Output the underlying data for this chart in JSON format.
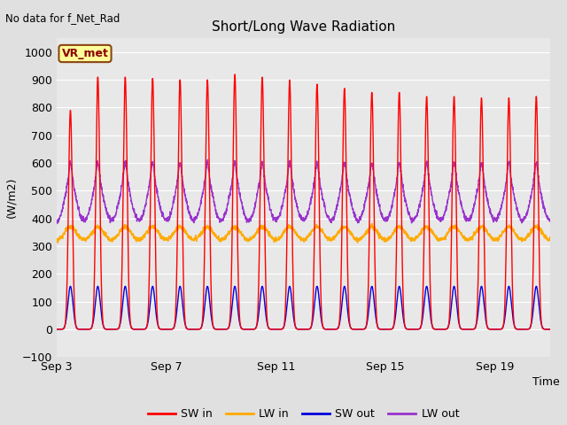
{
  "title": "Short/Long Wave Radiation",
  "xlabel": "Time",
  "ylabel": "(W/m2)",
  "ylim": [
    -100,
    1050
  ],
  "yticks": [
    -100,
    0,
    100,
    200,
    300,
    400,
    500,
    600,
    700,
    800,
    900,
    1000
  ],
  "no_data_text": "No data for f_Net_Rad",
  "station_label": "VR_met",
  "legend_entries": [
    "SW in",
    "LW in",
    "SW out",
    "LW out"
  ],
  "sw_in_color": "#ff0000",
  "lw_in_color": "#ffaa00",
  "sw_out_color": "#0000dd",
  "lw_out_color": "#9933cc",
  "bg_color": "#e0e0e0",
  "plot_bg_color": "#e8e8e8",
  "grid_color": "#ffffff",
  "n_days": 19,
  "xtick_days": [
    0,
    4,
    8,
    12,
    16
  ],
  "xtick_labels": [
    "Sep 3",
    "Sep 7",
    "Sep 11",
    "Sep 15",
    "Sep 19"
  ]
}
